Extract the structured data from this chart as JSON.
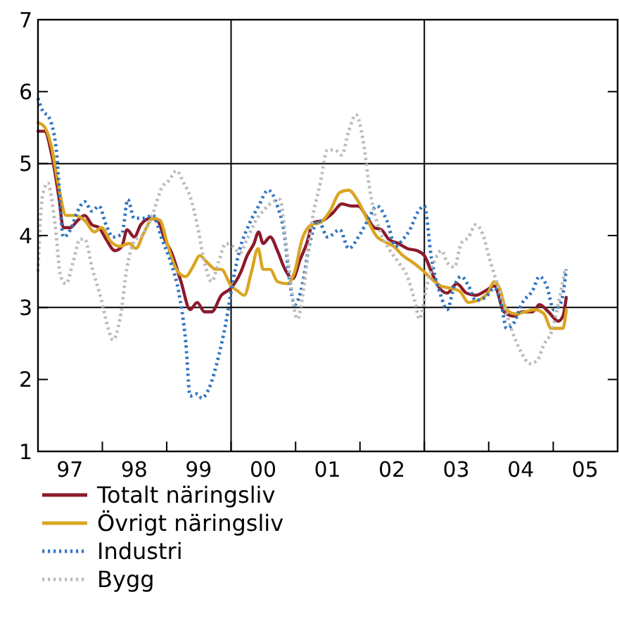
{
  "chart_data": {
    "type": "line",
    "xlim": [
      "1997-01-01",
      "2006-01-01"
    ],
    "ylim": [
      1,
      7
    ],
    "xticks": [
      {
        "value": "1997-07-01",
        "label": "97"
      },
      {
        "value": "1998-07-01",
        "label": "98"
      },
      {
        "value": "1999-07-01",
        "label": "99"
      },
      {
        "value": "2000-07-01",
        "label": "00"
      },
      {
        "value": "2001-07-01",
        "label": "01"
      },
      {
        "value": "2002-07-01",
        "label": "02"
      },
      {
        "value": "2003-07-01",
        "label": "03"
      },
      {
        "value": "2004-07-01",
        "label": "04"
      },
      {
        "value": "2005-07-01",
        "label": "05"
      },
      {
        "value": "1998-01-01",
        "label": null
      },
      {
        "value": "1999-01-01",
        "label": null
      },
      {
        "value": "2000-01-01",
        "label": null
      },
      {
        "value": "2001-01-01",
        "label": null
      },
      {
        "value": "2002-01-01",
        "label": null
      },
      {
        "value": "2003-01-01",
        "label": null
      },
      {
        "value": "2004-01-01",
        "label": null
      },
      {
        "value": "2005-01-01",
        "label": null
      }
    ],
    "yticks": [
      1,
      2,
      3,
      4,
      5,
      6,
      7
    ],
    "ref_lines": [
      {
        "axis": "y",
        "value": 3,
        "color": "#000000"
      },
      {
        "axis": "y",
        "value": 5,
        "color": "#000000"
      },
      {
        "axis": "x",
        "value": "2000-01-01",
        "color": "#000000"
      },
      {
        "axis": "x",
        "value": "2003-01-01",
        "color": "#000000"
      }
    ],
    "legend": "bottom",
    "series": [
      {
        "name": "Totalt näringsliv",
        "color": "#8b1a2b",
        "line_style": "solid",
        "x": [
          "1997-01-01",
          "1997-02-07",
          "1997-03-20",
          "1997-04-29",
          "1997-05-25",
          "1997-07-04",
          "1997-08-14",
          "1997-09-23",
          "1997-11-03",
          "1997-12-13",
          "1998-01-22",
          "1998-03-13",
          "1998-04-22",
          "1998-05-21",
          "1998-07-01",
          "1998-08-07",
          "1998-10-01",
          "1998-11-10",
          "1998-12-20",
          "1999-01-29",
          "1999-03-23",
          "1999-05-14",
          "1999-06-23",
          "1999-08-03",
          "1999-09-13",
          "1999-11-07",
          "2000-01-01",
          "2000-02-25",
          "2000-04-01",
          "2000-05-10",
          "2000-06-05",
          "2000-07-01",
          "2000-08-10",
          "2000-09-20",
          "2000-10-29",
          "2000-12-16",
          "2001-01-26",
          "2001-03-05",
          "2001-04-11",
          "2001-06-05",
          "2001-07-29",
          "2001-09-20",
          "2001-11-14",
          "2001-12-23",
          "2002-02-03",
          "2002-03-23",
          "2002-05-03",
          "2002-06-13",
          "2002-08-07",
          "2002-09-27",
          "2002-11-21",
          "2003-01-01",
          "2003-02-10",
          "2003-03-20",
          "2003-05-10",
          "2003-07-04",
          "2003-08-28",
          "2003-10-19",
          "2003-12-13",
          "2004-02-03",
          "2004-03-27",
          "2004-05-21",
          "2004-07-11",
          "2004-09-05",
          "2004-10-15",
          "2004-12-05",
          "2005-01-29",
          "2005-02-25",
          "2005-03-16"
        ],
        "values": [
          5.45,
          5.45,
          5.12,
          4.54,
          4.11,
          4.11,
          4.21,
          4.28,
          4.15,
          4.11,
          3.95,
          3.79,
          3.85,
          4.08,
          3.98,
          4.15,
          4.24,
          4.21,
          3.95,
          3.76,
          3.36,
          2.97,
          3.07,
          2.94,
          2.94,
          3.17,
          3.27,
          3.49,
          3.72,
          3.89,
          4.05,
          3.89,
          3.98,
          3.79,
          3.55,
          3.4,
          3.66,
          3.89,
          4.18,
          4.21,
          4.31,
          4.44,
          4.41,
          4.41,
          4.28,
          4.11,
          4.08,
          3.95,
          3.89,
          3.82,
          3.79,
          3.72,
          3.5,
          3.3,
          3.2,
          3.33,
          3.2,
          3.17,
          3.23,
          3.3,
          2.94,
          2.88,
          2.94,
          2.94,
          3.04,
          2.94,
          2.81,
          2.88,
          3.14
        ]
      },
      {
        "name": "Övrigt näringsliv",
        "color": "#d9a521",
        "line_style": "solid",
        "x": [
          "1997-01-01",
          "1997-02-07",
          "1997-03-20",
          "1997-04-29",
          "1997-06-09",
          "1997-07-29",
          "1997-09-23",
          "1997-11-17",
          "1997-12-27",
          "1998-02-17",
          "1998-04-11",
          "1998-06-02",
          "1998-07-11",
          "1998-08-21",
          "1998-10-15",
          "1998-11-25",
          "1999-01-04",
          "1999-02-25",
          "1999-04-19",
          "1999-05-28",
          "1999-07-08",
          "1999-08-17",
          "1999-10-08",
          "1999-11-07",
          "2000-01-01",
          "2000-02-07",
          "2000-03-16",
          "2000-04-26",
          "2000-06-02",
          "2000-07-01",
          "2000-08-10",
          "2000-09-20",
          "2000-11-14",
          "2000-12-27",
          "2001-02-07",
          "2001-04-01",
          "2001-05-21",
          "2001-07-15",
          "2001-09-09",
          "2001-10-29",
          "2001-12-23",
          "2002-02-14",
          "2002-04-08",
          "2002-05-17",
          "2002-07-11",
          "2002-09-02",
          "2002-10-26",
          "2002-12-16",
          "2003-02-10",
          "2003-04-04",
          "2003-05-25",
          "2003-07-19",
          "2003-09-09",
          "2003-11-03",
          "2003-12-27",
          "2004-02-03",
          "2004-03-02",
          "2004-04-11",
          "2004-06-02",
          "2004-07-26",
          "2004-09-20",
          "2004-11-10",
          "2004-12-20",
          "2005-01-29",
          "2005-02-25",
          "2005-03-16"
        ],
        "values": [
          5.57,
          5.51,
          5.22,
          4.67,
          4.28,
          4.28,
          4.21,
          4.05,
          4.11,
          3.92,
          3.85,
          3.89,
          3.82,
          4.02,
          4.24,
          4.21,
          3.89,
          3.53,
          3.43,
          3.56,
          3.72,
          3.63,
          3.53,
          3.53,
          3.3,
          3.23,
          3.17,
          3.5,
          3.82,
          3.53,
          3.53,
          3.36,
          3.33,
          3.5,
          3.95,
          4.15,
          4.18,
          4.34,
          4.6,
          4.63,
          4.47,
          4.21,
          3.98,
          3.92,
          3.85,
          3.72,
          3.63,
          3.53,
          3.4,
          3.3,
          3.27,
          3.23,
          3.07,
          3.1,
          3.2,
          3.36,
          3.27,
          2.97,
          2.91,
          2.94,
          2.97,
          2.91,
          2.71,
          2.71,
          2.71,
          2.97
        ]
      },
      {
        "name": "Industri",
        "color": "#2f74c0",
        "line_style": "dotted",
        "x": [
          "1997-01-01",
          "1997-01-26",
          "1997-03-05",
          "1997-04-15",
          "1997-05-25",
          "1997-07-04",
          "1997-08-14",
          "1997-09-23",
          "1997-11-03",
          "1997-12-13",
          "1998-01-22",
          "1998-03-02",
          "1998-04-22",
          "1998-05-25",
          "1998-07-01",
          "1998-08-21",
          "1998-10-15",
          "1998-12-05",
          "1999-01-29",
          "1999-03-09",
          "1999-04-19",
          "1999-05-14",
          "1999-06-23",
          "1999-07-19",
          "1999-08-28",
          "1999-10-22",
          "1999-12-02",
          "2000-01-11",
          "2000-02-21",
          "2000-04-11",
          "2000-06-05",
          "2000-07-29",
          "2000-09-20",
          "2000-10-29",
          "2000-11-25",
          "2000-12-27",
          "2001-02-07",
          "2001-03-16",
          "2001-05-10",
          "2001-07-01",
          "2001-09-09",
          "2001-10-29",
          "2001-12-23",
          "2002-02-14",
          "2002-04-08",
          "2002-06-02",
          "2002-07-22",
          "2002-09-02",
          "2002-10-11",
          "2002-11-21",
          "2003-01-01",
          "2003-02-10",
          "2003-04-04",
          "2003-05-10",
          "2003-06-20",
          "2003-07-29",
          "2003-09-09",
          "2003-10-19",
          "2003-12-13",
          "2004-02-03",
          "2004-03-13",
          "2004-04-11",
          "2004-05-21",
          "2004-07-11",
          "2004-09-05",
          "2004-10-15",
          "2004-11-25",
          "2005-01-04",
          "2005-02-14",
          "2005-03-16"
        ],
        "values": [
          5.91,
          5.74,
          5.64,
          5.19,
          3.98,
          4.08,
          4.34,
          4.47,
          4.34,
          4.41,
          4.15,
          3.98,
          4.02,
          4.5,
          4.24,
          4.24,
          4.28,
          3.95,
          3.59,
          3.23,
          2.52,
          1.77,
          1.8,
          1.74,
          1.87,
          2.32,
          2.78,
          3.36,
          3.82,
          4.15,
          4.41,
          4.63,
          4.41,
          4.02,
          3.43,
          3.04,
          3.3,
          3.82,
          4.21,
          3.98,
          4.08,
          3.82,
          3.98,
          4.21,
          4.41,
          4.21,
          3.85,
          3.95,
          4.08,
          4.31,
          4.41,
          3.69,
          3.17,
          2.97,
          3.3,
          3.43,
          3.3,
          3.1,
          3.14,
          3.27,
          3.04,
          2.71,
          2.78,
          3.07,
          3.23,
          3.43,
          3.3,
          2.97,
          3.07,
          3.53
        ]
      },
      {
        "name": "Bygg",
        "color": "#bbbbbb",
        "line_style": "dotted",
        "x": [
          "1997-01-01",
          "1997-01-26",
          "1997-02-25",
          "1997-04-08",
          "1997-05-10",
          "1997-06-09",
          "1997-07-19",
          "1997-08-28",
          "1997-09-23",
          "1997-11-03",
          "1997-12-27",
          "1998-02-03",
          "1998-03-02",
          "1998-04-11",
          "1998-05-21",
          "1998-07-01",
          "1998-08-21",
          "1998-10-15",
          "1998-12-05",
          "1999-01-15",
          "1999-02-25",
          "1999-04-08",
          "1999-05-14",
          "1999-06-23",
          "1999-08-03",
          "1999-09-13",
          "1999-10-22",
          "1999-12-02",
          "2000-01-11",
          "2000-02-21",
          "2000-04-01",
          "2000-05-21",
          "2000-07-11",
          "2000-08-25",
          "2000-10-04",
          "2000-11-17",
          "2001-01-11",
          "2001-02-21",
          "2001-04-01",
          "2001-05-21",
          "2001-07-01",
          "2001-08-10",
          "2001-09-20",
          "2001-10-29",
          "2001-12-09",
          "2002-01-19",
          "2002-02-28",
          "2002-04-22",
          "2002-06-13",
          "2002-08-07",
          "2002-09-27",
          "2002-11-07",
          "2002-12-05",
          "2003-01-15",
          "2003-02-25",
          "2003-04-08",
          "2003-05-10",
          "2003-06-20",
          "2003-07-29",
          "2003-09-09",
          "2003-10-19",
          "2003-11-28",
          "2004-01-08",
          "2004-02-14",
          "2004-03-27",
          "2004-05-07",
          "2004-07-01",
          "2004-08-21",
          "2004-10-01",
          "2004-11-10",
          "2004-12-20",
          "2005-01-29",
          "2005-03-09"
        ],
        "values": [
          3.5,
          4.54,
          4.73,
          4.15,
          3.43,
          3.33,
          3.63,
          3.95,
          3.95,
          3.56,
          3.1,
          2.71,
          2.55,
          2.84,
          3.56,
          3.92,
          4.02,
          4.31,
          4.67,
          4.77,
          4.9,
          4.73,
          4.54,
          4.15,
          3.63,
          3.36,
          3.63,
          3.89,
          3.85,
          3.76,
          3.95,
          4.21,
          4.37,
          4.47,
          4.5,
          3.69,
          2.84,
          3.36,
          4.15,
          4.73,
          5.19,
          5.19,
          5.12,
          5.45,
          5.68,
          5.32,
          4.6,
          4.08,
          3.82,
          3.63,
          3.43,
          3.1,
          2.84,
          3.3,
          3.63,
          3.79,
          3.63,
          3.56,
          3.89,
          3.98,
          4.15,
          4.02,
          3.66,
          3.36,
          3.04,
          2.71,
          2.39,
          2.22,
          2.26,
          2.49,
          2.65,
          3.04,
          3.53
        ]
      }
    ]
  }
}
